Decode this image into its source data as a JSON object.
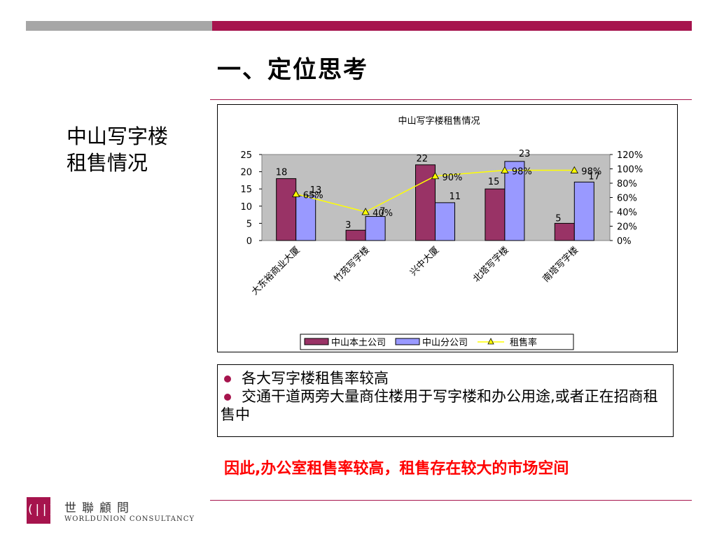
{
  "slide": {
    "title": "一、定位思考",
    "side_label_line1": "中山写字楼",
    "side_label_line2": "租售情况"
  },
  "colors": {
    "accent": "#a6144d",
    "gray_bar": "#a6a6a6",
    "series_local": "#993366",
    "series_branch": "#9999ff",
    "series_rate": "#ffff00",
    "plot_bg": "#c0c0c0",
    "conclusion": "#ff0000"
  },
  "bullets": [
    "各大写字楼租售率较高",
    "交通干道两旁大量商住楼用于写字楼和办公用途,或者正在招商租售中"
  ],
  "conclusion": "因此,办公室租售率较高，租售存在较大的市场空间",
  "logo": {
    "cn": "世聯顧問",
    "en": "WORLDUNION CONSULTANCY",
    "mark_icon": "worldunion-logo-icon"
  },
  "chart_data": {
    "type": "bar",
    "title": "中山写字楼租售情况",
    "categories": [
      "大东裕商业大厦",
      "竹苑写字楼",
      "兴中大厦",
      "北塔写字楼",
      "南塔写字楼"
    ],
    "series": [
      {
        "name": "中山本土公司",
        "type": "bar",
        "axis": "left",
        "values": [
          18,
          3,
          22,
          15,
          5
        ],
        "color": "#993366"
      },
      {
        "name": "中山分公司",
        "type": "bar",
        "axis": "left",
        "values": [
          13,
          7,
          11,
          23,
          17
        ],
        "color": "#9999ff"
      },
      {
        "name": "租售率",
        "type": "line",
        "axis": "right",
        "values": [
          65,
          40,
          90,
          98,
          98
        ],
        "color": "#ffff00"
      }
    ],
    "y_left": {
      "min": 0,
      "max": 25,
      "ticks": [
        "0",
        "5",
        "10",
        "15",
        "20",
        "25"
      ]
    },
    "y_right": {
      "min": 0,
      "max": 120,
      "ticks": [
        "0%",
        "20%",
        "40%",
        "60%",
        "80%",
        "100%",
        "120%"
      ]
    },
    "legend_position": "bottom",
    "grid": false
  }
}
